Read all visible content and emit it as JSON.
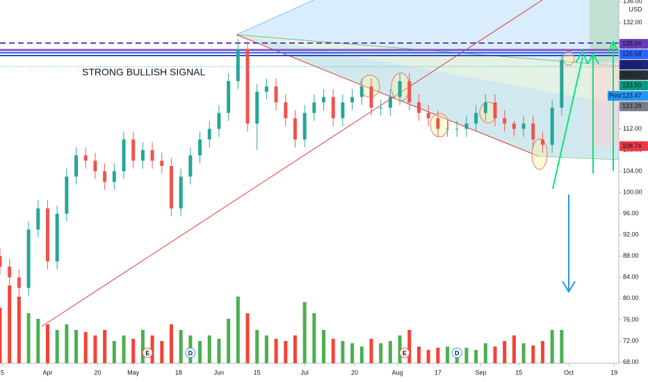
{
  "chart_data": {
    "type": "candlestick",
    "annotation": "STRONG BULLISH SIGNAL",
    "currency": "USD",
    "x": [
      0,
      2,
      4,
      6,
      8,
      10,
      12,
      14,
      16,
      18,
      20,
      22,
      24,
      26,
      28,
      30,
      32,
      34,
      36,
      38,
      40,
      42,
      44,
      46,
      48,
      50,
      52,
      54,
      56,
      58,
      60,
      62,
      64,
      66,
      68,
      70,
      72,
      74,
      76,
      78,
      80,
      82,
      84,
      86,
      88,
      90,
      92,
      94,
      96,
      98,
      100,
      102,
      104,
      106,
      108,
      110,
      112,
      114,
      116,
      118
    ],
    "open": [
      88,
      86,
      84,
      82,
      93,
      97,
      87,
      96,
      103,
      107,
      106,
      104,
      102,
      104,
      110,
      106,
      108,
      106,
      105,
      97,
      103,
      107,
      110,
      112,
      115,
      121,
      127,
      113,
      119,
      120,
      117,
      114,
      110,
      115,
      117,
      118,
      114,
      117,
      118,
      120,
      116,
      116,
      118,
      121,
      117,
      115,
      114,
      112,
      112,
      112,
      113,
      115,
      117,
      114,
      113,
      112,
      113,
      110,
      109,
      116
    ],
    "high": [
      89.5,
      87.5,
      85.5,
      94.5,
      98.5,
      98.5,
      97.5,
      104.5,
      108.5,
      108.5,
      107.5,
      105.5,
      105.5,
      111.5,
      111.5,
      109.5,
      109.5,
      107.5,
      106.5,
      104.5,
      108.5,
      111.5,
      113.5,
      116.5,
      122.5,
      129,
      128.5,
      120.5,
      121.5,
      121.5,
      118.5,
      115.5,
      116.5,
      118.5,
      119.5,
      119.5,
      118.5,
      119.5,
      121.5,
      121.5,
      117.5,
      119.5,
      122.5,
      122.5,
      118.5,
      116.5,
      115.5,
      113.5,
      113.5,
      114.5,
      116.5,
      118.5,
      118.5,
      115.5,
      113.5,
      114.5,
      114.5,
      111.5,
      117.5,
      126.5
    ],
    "low": [
      84.5,
      82.5,
      80.5,
      80.5,
      91.5,
      85.5,
      85.5,
      94.5,
      101.5,
      104.5,
      102.5,
      100.5,
      100.5,
      102.5,
      104.5,
      104.5,
      104.5,
      103.5,
      95.5,
      95.5,
      101.5,
      105.5,
      108.5,
      110.5,
      113.5,
      119.5,
      111.5,
      108,
      117.5,
      115.5,
      112.5,
      108.5,
      108.5,
      113.5,
      115.5,
      112.5,
      112.5,
      115.5,
      116.5,
      114.5,
      114.5,
      114.5,
      116.5,
      115.5,
      113.5,
      112.5,
      110.5,
      110.5,
      110.5,
      110.5,
      111.5,
      113.5,
      112.5,
      111.5,
      110.5,
      110.5,
      108.5,
      107.5,
      107.5,
      114.5
    ],
    "close": [
      86,
      84,
      82,
      93,
      97,
      87,
      96,
      103,
      107,
      106,
      104,
      102,
      104,
      110,
      106,
      108,
      106,
      105,
      97,
      103,
      107,
      110,
      112,
      115,
      121,
      127,
      113,
      119,
      120,
      117,
      114,
      110,
      115,
      117,
      118,
      114,
      117,
      118,
      120,
      116,
      116,
      118,
      121,
      117,
      115,
      114,
      112,
      112,
      112,
      113,
      115,
      117,
      114,
      113,
      112,
      113,
      110,
      109,
      116,
      125
    ],
    "volume": [
      50,
      70,
      60,
      45,
      40,
      35,
      30,
      35,
      30,
      28,
      25,
      30,
      20,
      25,
      22,
      30,
      25,
      20,
      35,
      30,
      25,
      20,
      25,
      22,
      40,
      60,
      45,
      30,
      25,
      22,
      20,
      25,
      55,
      45,
      30,
      22,
      20,
      18,
      15,
      22,
      18,
      20,
      25,
      30,
      15,
      12,
      14,
      15,
      12,
      14,
      12,
      18,
      15,
      20,
      25,
      18,
      16,
      20,
      30,
      30
    ],
    "volume_ylim": [
      0,
      100
    ],
    "up_color": "#26a69a",
    "down_color": "#ef5350",
    "volume_up_color": "#4caf50",
    "volume_down_color": "#f44336",
    "xlim": [
      0,
      130
    ],
    "xticks": [
      {
        "value": 0.5,
        "label": "5"
      },
      {
        "value": 10,
        "label": "Apr"
      },
      {
        "value": 20.5,
        "label": "20"
      },
      {
        "value": 28,
        "label": "May"
      },
      {
        "value": 37.5,
        "label": "18"
      },
      {
        "value": 46,
        "label": "Jun"
      },
      {
        "value": 54,
        "label": "15"
      },
      {
        "value": 64,
        "label": "Jul"
      },
      {
        "value": 74.5,
        "label": "20"
      },
      {
        "value": 83.5,
        "label": "Aug"
      },
      {
        "value": 92,
        "label": "17"
      },
      {
        "value": 101,
        "label": "Sep"
      },
      {
        "value": 109,
        "label": "15"
      },
      {
        "value": 119.5,
        "label": "Oct"
      },
      {
        "value": 129,
        "label": "19"
      }
    ],
    "ylim": [
      67.8,
      136.3
    ],
    "yticks": [
      {
        "value": 68,
        "label": "68.00"
      },
      {
        "value": 72,
        "label": "72.00"
      },
      {
        "value": 76,
        "label": "76.00"
      },
      {
        "value": 80,
        "label": "80.00"
      },
      {
        "value": 84,
        "label": "84.00"
      },
      {
        "value": 88,
        "label": "88.00"
      },
      {
        "value": 92,
        "label": "92.00"
      },
      {
        "value": 96,
        "label": "96.00"
      },
      {
        "value": 100,
        "label": "100.00"
      },
      {
        "value": 104,
        "label": "104.00"
      },
      {
        "value": 108,
        "label": "108.00"
      },
      {
        "value": 112,
        "label": "112.00"
      },
      {
        "value": 116,
        "label": "116.00"
      },
      {
        "value": 120,
        "label": "120.00"
      },
      {
        "value": 124,
        "label": "124.00"
      },
      {
        "value": 128,
        "label": "128.00"
      },
      {
        "value": 132,
        "label": "132.00"
      },
      {
        "value": 136,
        "label": "136.00"
      }
    ],
    "price_labels": [
      {
        "value": 128.04,
        "label": "128.04",
        "color": "#673ab7"
      },
      {
        "value": 126.58,
        "label": "126.58",
        "color": "#2962ff"
      },
      {
        "value": 126.12,
        "label": "126.12",
        "color": "#1a237e"
      },
      {
        "value": 125.57,
        "label": "125.57",
        "color": "#263238"
      },
      {
        "value": 123.5,
        "label": "123.50",
        "color": "#089981"
      },
      {
        "value": 123.47,
        "label": "123.47",
        "color": "#2196f3",
        "tag": "Post"
      },
      {
        "value": 123.28,
        "label": "123.28",
        "color": "#787b86"
      },
      {
        "value": 108.74,
        "label": "108.74",
        "color": "#f23645"
      }
    ],
    "events": [
      {
        "x": 31,
        "label": "E"
      },
      {
        "x": 40,
        "label": "D"
      },
      {
        "x": 85,
        "label": "E"
      },
      {
        "x": 96,
        "label": "D"
      }
    ]
  }
}
